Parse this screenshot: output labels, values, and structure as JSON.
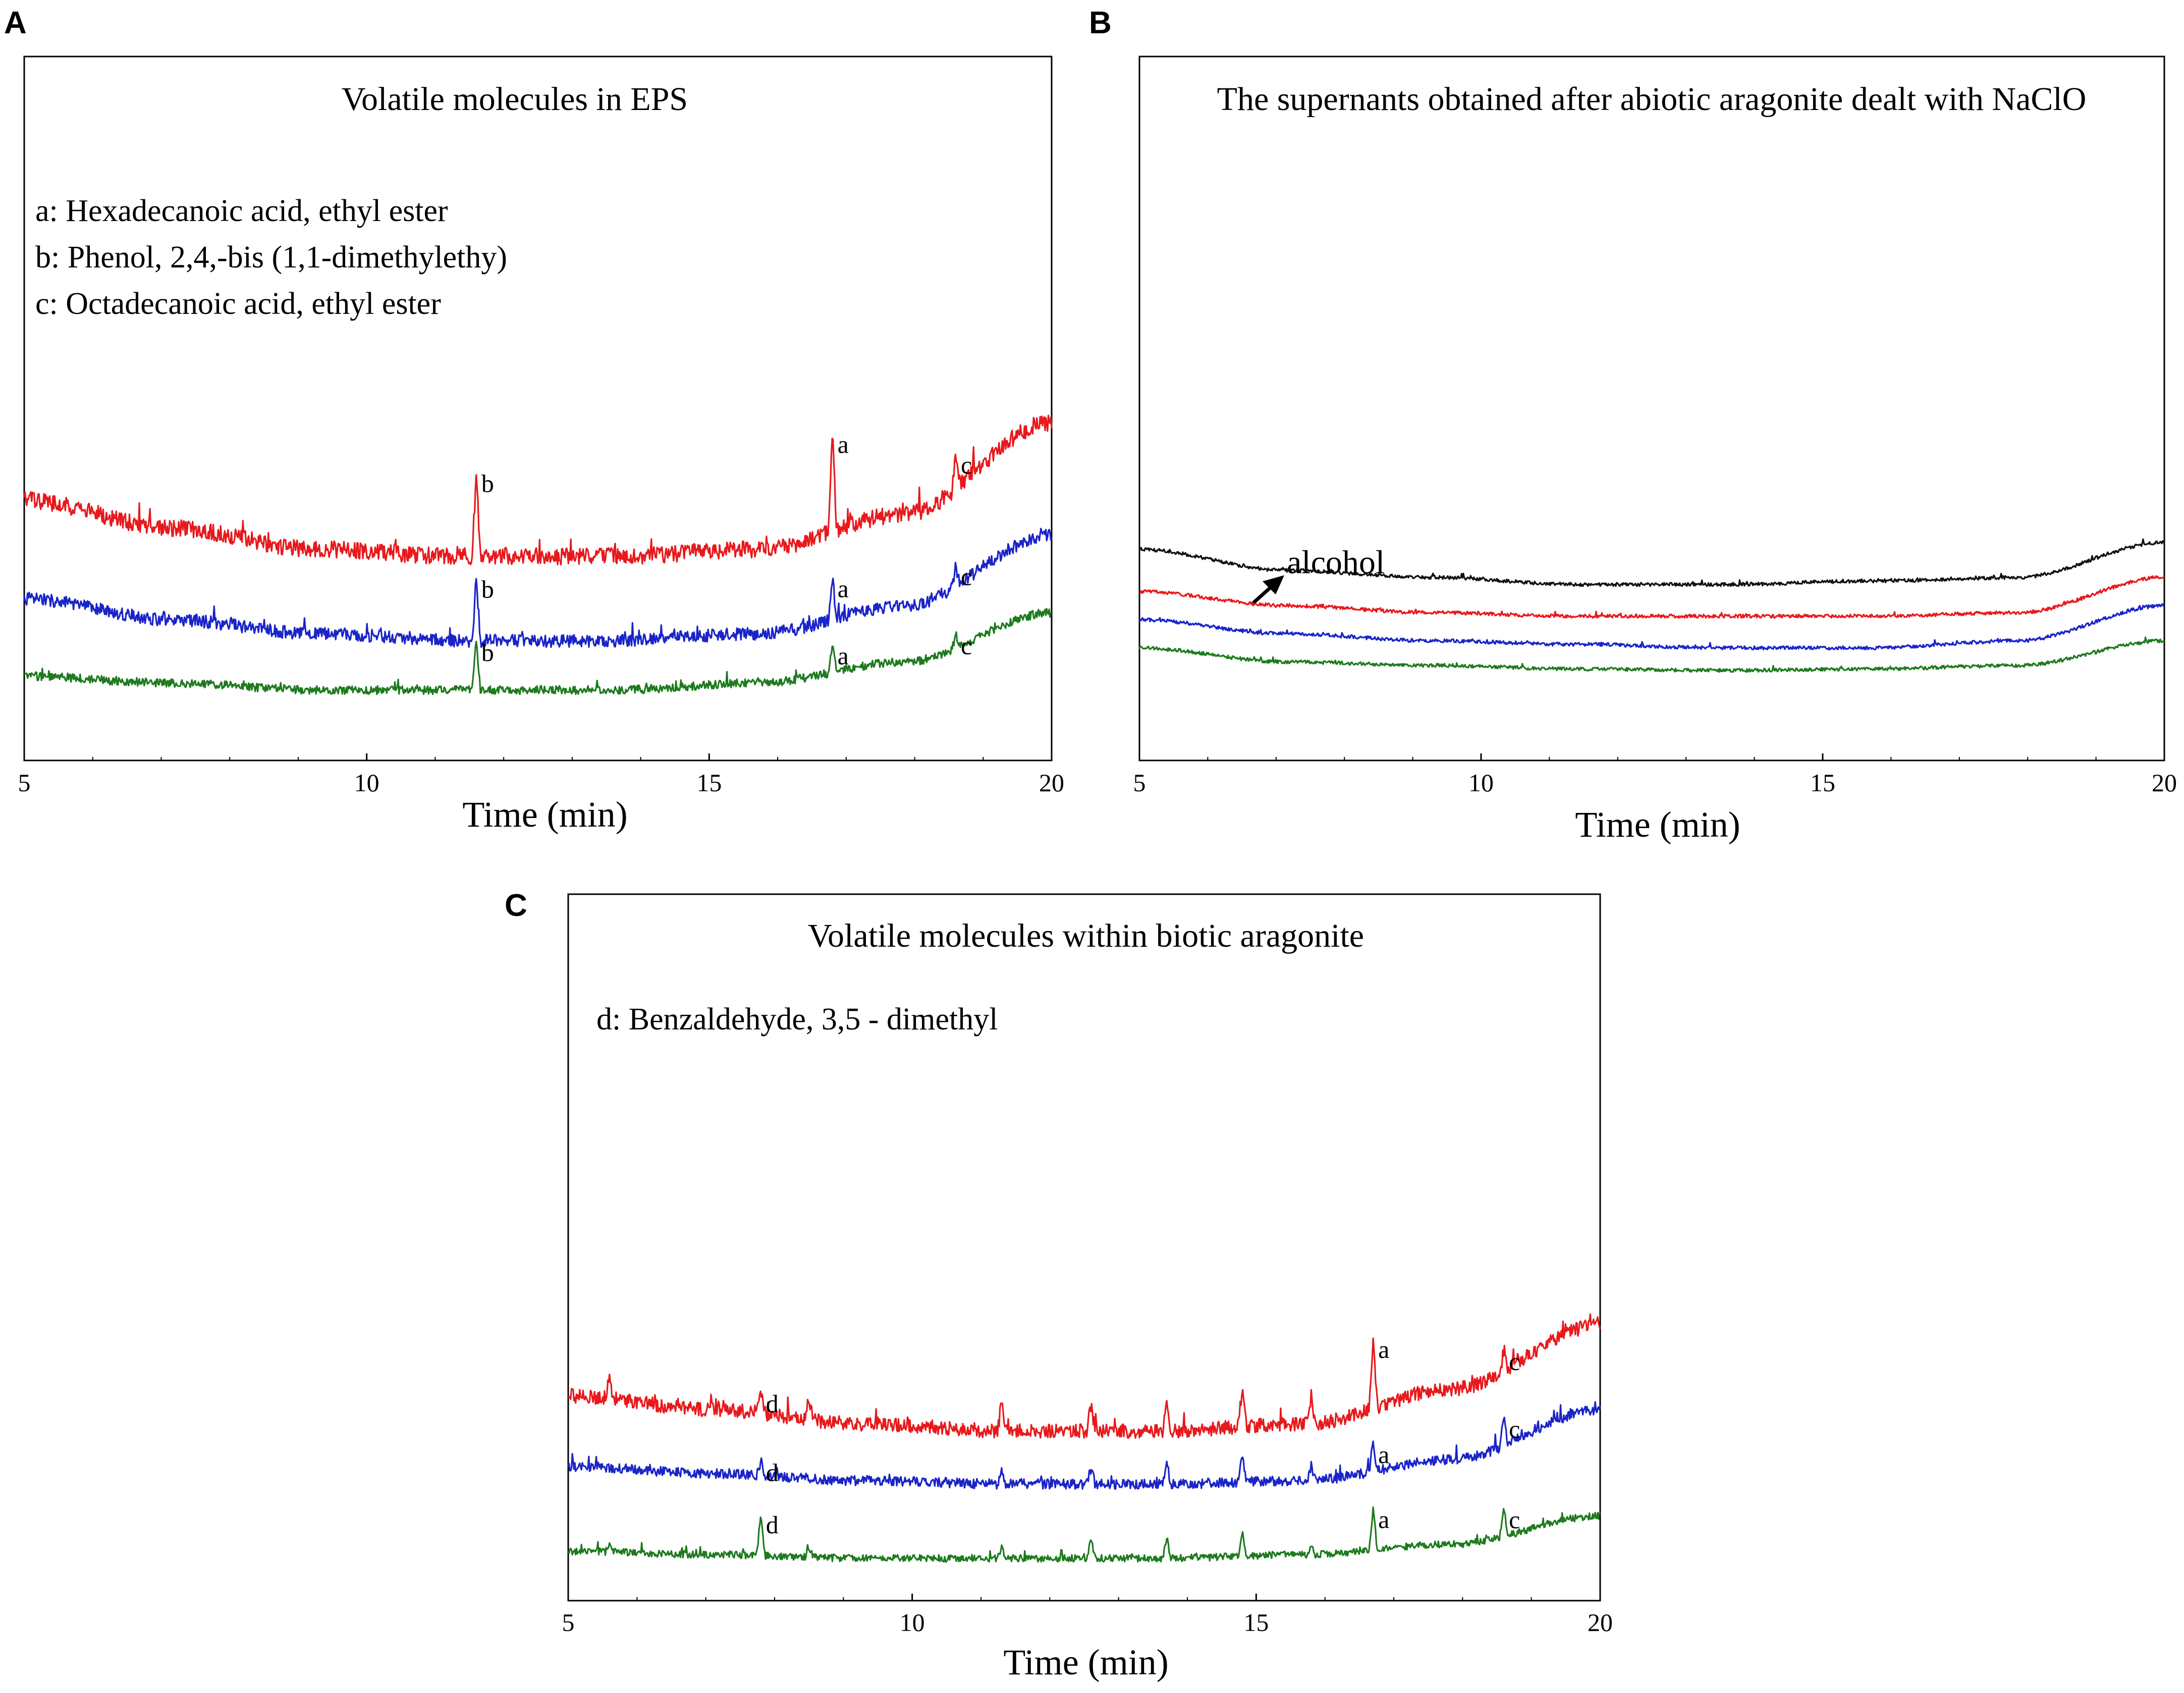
{
  "chart_data": [
    {
      "id": "A",
      "type": "line",
      "panel_label": "A",
      "title": "Volatile molecules in EPS",
      "legend_lines": [
        "a: Hexadecanoic acid, ethyl ester",
        "b: Phenol, 2,4,-bis (1,1-dimethylethy)",
        "c: Octadecanoic acid, ethyl ester"
      ],
      "xlabel": "Time (min)",
      "xlim": [
        5,
        20
      ],
      "xticks": [
        5,
        10,
        15,
        20
      ],
      "series_colors": [
        "#e8191c",
        "#1a24c8",
        "#1d7a1d"
      ],
      "series": [
        {
          "name": "red trace",
          "color": "#e8191c",
          "baseline": [
            0.37,
            0.33,
            0.3,
            0.29,
            0.29,
            0.3,
            0.35,
            0.48
          ],
          "noise": 0.012,
          "peaks": [
            {
              "x": 11.6,
              "h": 0.12,
              "label": "b"
            },
            {
              "x": 16.8,
              "h": 0.14,
              "label": "a"
            },
            {
              "x": 18.6,
              "h": 0.05,
              "label": "c"
            }
          ]
        },
        {
          "name": "blue trace",
          "color": "#1a24c8",
          "baseline": [
            0.23,
            0.2,
            0.18,
            0.17,
            0.17,
            0.18,
            0.22,
            0.32
          ],
          "noise": 0.009,
          "peaks": [
            {
              "x": 11.6,
              "h": 0.09,
              "label": "b"
            },
            {
              "x": 16.8,
              "h": 0.06,
              "label": "a"
            },
            {
              "x": 18.6,
              "h": 0.03,
              "label": "c"
            }
          ]
        },
        {
          "name": "green trace",
          "color": "#1d7a1d",
          "baseline": [
            0.12,
            0.11,
            0.1,
            0.1,
            0.1,
            0.11,
            0.14,
            0.21
          ],
          "noise": 0.006,
          "peaks": [
            {
              "x": 11.6,
              "h": 0.07,
              "label": "b"
            },
            {
              "x": 16.8,
              "h": 0.04,
              "label": "a"
            },
            {
              "x": 18.6,
              "h": 0.02,
              "label": "c"
            }
          ]
        }
      ]
    },
    {
      "id": "B",
      "type": "line",
      "panel_label": "B",
      "title": "The supernants obtained after abiotic aragonite dealt with NaClO",
      "annotation": "alcohol",
      "annotation_x": 6.7,
      "xlabel": "Time (min)",
      "xlim": [
        5,
        20
      ],
      "xticks": [
        5,
        10,
        15,
        20
      ],
      "series_colors": [
        "#111111",
        "#e8191c",
        "#1a24c8",
        "#1d7a1d"
      ],
      "series": [
        {
          "name": "black trace",
          "color": "#111111",
          "baseline": [
            0.3,
            0.27,
            0.26,
            0.25,
            0.25,
            0.255,
            0.26,
            0.31
          ],
          "noise": 0.0025,
          "peaks": []
        },
        {
          "name": "red trace",
          "color": "#e8191c",
          "baseline": [
            0.24,
            0.22,
            0.21,
            0.205,
            0.205,
            0.205,
            0.21,
            0.26
          ],
          "noise": 0.0025,
          "peaks": []
        },
        {
          "name": "blue trace",
          "color": "#1a24c8",
          "baseline": [
            0.2,
            0.18,
            0.17,
            0.165,
            0.16,
            0.16,
            0.17,
            0.22
          ],
          "noise": 0.0025,
          "peaks": []
        },
        {
          "name": "green trace",
          "color": "#1d7a1d",
          "baseline": [
            0.16,
            0.14,
            0.135,
            0.13,
            0.128,
            0.13,
            0.135,
            0.17
          ],
          "noise": 0.0025,
          "peaks": []
        }
      ]
    },
    {
      "id": "C",
      "type": "line",
      "panel_label": "C",
      "title": "Volatile molecules within biotic aragonite",
      "legend_lines": [
        "d: Benzaldehyde, 3,5 - dimethyl"
      ],
      "xlabel": "Time (min)",
      "xlim": [
        5,
        20
      ],
      "xticks": [
        5,
        10,
        15,
        20
      ],
      "series_colors": [
        "#e8191c",
        "#1a24c8",
        "#1d7a1d"
      ],
      "series": [
        {
          "name": "red trace",
          "color": "#e8191c",
          "baseline": [
            0.29,
            0.27,
            0.25,
            0.24,
            0.24,
            0.25,
            0.3,
            0.39
          ],
          "noise": 0.01,
          "peaks": [
            {
              "x": 5.6,
              "h": 0.03
            },
            {
              "x": 7.8,
              "h": 0.03,
              "label": "d"
            },
            {
              "x": 8.5,
              "h": 0.03
            },
            {
              "x": 11.3,
              "h": 0.04
            },
            {
              "x": 12.6,
              "h": 0.04
            },
            {
              "x": 13.7,
              "h": 0.04
            },
            {
              "x": 14.8,
              "h": 0.05
            },
            {
              "x": 15.8,
              "h": 0.04
            },
            {
              "x": 16.7,
              "h": 0.1,
              "label": "a"
            },
            {
              "x": 18.6,
              "h": 0.03,
              "label": "c"
            }
          ]
        },
        {
          "name": "blue trace",
          "color": "#1a24c8",
          "baseline": [
            0.19,
            0.18,
            0.17,
            0.165,
            0.165,
            0.17,
            0.2,
            0.27
          ],
          "noise": 0.007,
          "peaks": [
            {
              "x": 7.8,
              "h": 0.02,
              "label": "d"
            },
            {
              "x": 11.3,
              "h": 0.02
            },
            {
              "x": 12.6,
              "h": 0.02
            },
            {
              "x": 13.7,
              "h": 0.03
            },
            {
              "x": 14.8,
              "h": 0.04
            },
            {
              "x": 15.8,
              "h": 0.02
            },
            {
              "x": 16.7,
              "h": 0.04,
              "label": "a"
            },
            {
              "x": 18.6,
              "h": 0.04,
              "label": "c"
            }
          ]
        },
        {
          "name": "green trace",
          "color": "#1d7a1d",
          "baseline": [
            0.07,
            0.065,
            0.06,
            0.06,
            0.06,
            0.065,
            0.08,
            0.12
          ],
          "noise": 0.005,
          "peaks": [
            {
              "x": 5.6,
              "h": 0.015
            },
            {
              "x": 7.8,
              "h": 0.06,
              "label": "d"
            },
            {
              "x": 8.5,
              "h": 0.015
            },
            {
              "x": 11.3,
              "h": 0.015
            },
            {
              "x": 12.6,
              "h": 0.025
            },
            {
              "x": 13.7,
              "h": 0.03
            },
            {
              "x": 14.8,
              "h": 0.035
            },
            {
              "x": 15.8,
              "h": 0.015
            },
            {
              "x": 16.7,
              "h": 0.06,
              "label": "a"
            },
            {
              "x": 18.6,
              "h": 0.04,
              "label": "c"
            }
          ]
        }
      ]
    }
  ]
}
